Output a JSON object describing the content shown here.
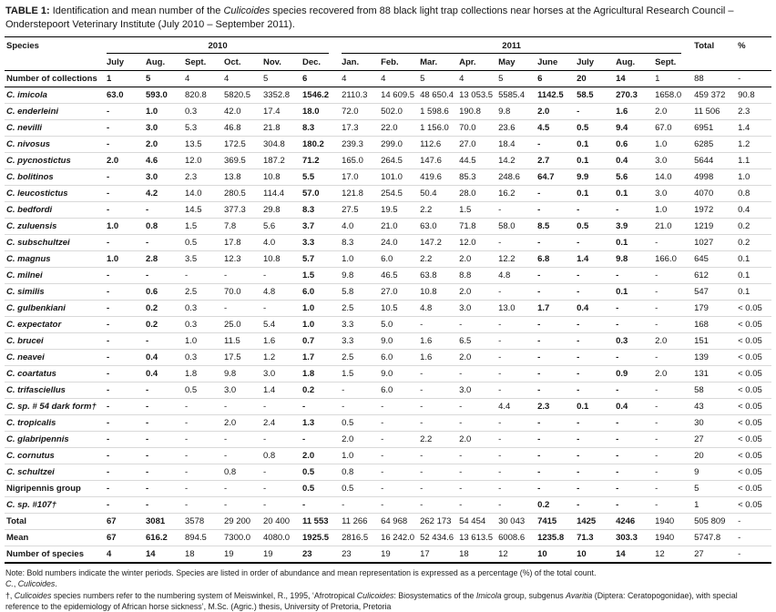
{
  "caption": {
    "label": "TABLE 1:",
    "pre": " Identification and mean number of the ",
    "genus": "Culicoides",
    "post": " species recovered from 88 black light trap collections near horses at the Agricultural Research Council – Onderstepoort Veterinary Institute (July 2010 – September 2011)."
  },
  "table": {
    "header": {
      "species": "Species",
      "years": [
        {
          "label": "2010",
          "span": 6
        },
        {
          "label": "2011",
          "span": 9
        }
      ],
      "months": [
        "July",
        "Aug.",
        "Sept.",
        "Oct.",
        "Nov.",
        "Dec.",
        "Jan.",
        "Feb.",
        "Mar.",
        "Apr.",
        "May",
        "June",
        "July",
        "Aug.",
        "Sept."
      ],
      "total": "Total",
      "percent": "%"
    },
    "winter_columns": [
      0,
      1,
      5,
      11,
      12,
      13
    ],
    "collections_row": {
      "label": "Number of collections",
      "italic": false,
      "values": [
        "1",
        "5",
        "4",
        "4",
        "5",
        "6",
        "4",
        "4",
        "5",
        "4",
        "5",
        "6",
        "20",
        "14",
        "1"
      ],
      "total": "88",
      "percent": "-"
    },
    "species_rows": [
      {
        "label": "C. imicola",
        "italic": true,
        "values": [
          "63.0",
          "593.0",
          "820.8",
          "5820.5",
          "3352.8",
          "1546.2",
          "2110.3",
          "14 609.5",
          "48 650.4",
          "13 053.5",
          "5585.4",
          "1142.5",
          "58.5",
          "270.3",
          "1658.0"
        ],
        "total": "459 372",
        "percent": "90.8"
      },
      {
        "label": "C. enderleini",
        "italic": true,
        "values": [
          "-",
          "1.0",
          "0.3",
          "42.0",
          "17.4",
          "18.0",
          "72.0",
          "502.0",
          "1 598.6",
          "190.8",
          "9.8",
          "2.0",
          "-",
          "1.6",
          "2.0"
        ],
        "total": "11 506",
        "percent": "2.3"
      },
      {
        "label": "C. nevilli",
        "italic": true,
        "values": [
          "-",
          "3.0",
          "5.3",
          "46.8",
          "21.8",
          "8.3",
          "17.3",
          "22.0",
          "1 156.0",
          "70.0",
          "23.6",
          "4.5",
          "0.5",
          "9.4",
          "67.0"
        ],
        "total": "6951",
        "percent": "1.4"
      },
      {
        "label": "C. nivosus",
        "italic": true,
        "values": [
          "-",
          "2.0",
          "13.5",
          "172.5",
          "304.8",
          "180.2",
          "239.3",
          "299.0",
          "112.6",
          "27.0",
          "18.4",
          "-",
          "0.1",
          "0.6",
          "1.0"
        ],
        "total": "6285",
        "percent": "1.2"
      },
      {
        "label": "C. pycnostictus",
        "italic": true,
        "values": [
          "2.0",
          "4.6",
          "12.0",
          "369.5",
          "187.2",
          "71.2",
          "165.0",
          "264.5",
          "147.6",
          "44.5",
          "14.2",
          "2.7",
          "0.1",
          "0.4",
          "3.0"
        ],
        "total": "5644",
        "percent": "1.1"
      },
      {
        "label": "C. bolitinos",
        "italic": true,
        "values": [
          "-",
          "3.0",
          "2.3",
          "13.8",
          "10.8",
          "5.5",
          "17.0",
          "101.0",
          "419.6",
          "85.3",
          "248.6",
          "64.7",
          "9.9",
          "5.6",
          "14.0"
        ],
        "total": "4998",
        "percent": "1.0"
      },
      {
        "label": "C. leucostictus",
        "italic": true,
        "values": [
          "-",
          "4.2",
          "14.0",
          "280.5",
          "114.4",
          "57.0",
          "121.8",
          "254.5",
          "50.4",
          "28.0",
          "16.2",
          "-",
          "0.1",
          "0.1",
          "3.0"
        ],
        "total": "4070",
        "percent": "0.8"
      },
      {
        "label": "C. bedfordi",
        "italic": true,
        "values": [
          "-",
          "-",
          "14.5",
          "377.3",
          "29.8",
          "8.3",
          "27.5",
          "19.5",
          "2.2",
          "1.5",
          "-",
          "-",
          "-",
          "-",
          "1.0"
        ],
        "total": "1972",
        "percent": "0.4"
      },
      {
        "label": "C. zuluensis",
        "italic": true,
        "values": [
          "1.0",
          "0.8",
          "1.5",
          "7.8",
          "5.6",
          "3.7",
          "4.0",
          "21.0",
          "63.0",
          "71.8",
          "58.0",
          "8.5",
          "0.5",
          "3.9",
          "21.0"
        ],
        "total": "1219",
        "percent": "0.2"
      },
      {
        "label": "C. subschultzei",
        "italic": true,
        "values": [
          "-",
          "-",
          "0.5",
          "17.8",
          "4.0",
          "3.3",
          "8.3",
          "24.0",
          "147.2",
          "12.0",
          "-",
          "-",
          "-",
          "0.1",
          "-"
        ],
        "total": "1027",
        "percent": "0.2"
      },
      {
        "label": "C. magnus",
        "italic": true,
        "values": [
          "1.0",
          "2.8",
          "3.5",
          "12.3",
          "10.8",
          "5.7",
          "1.0",
          "6.0",
          "2.2",
          "2.0",
          "12.2",
          "6.8",
          "1.4",
          "9.8",
          "166.0"
        ],
        "total": "645",
        "percent": "0.1"
      },
      {
        "label": "C. milnei",
        "italic": true,
        "values": [
          "-",
          "-",
          "-",
          "-",
          "-",
          "1.5",
          "9.8",
          "46.5",
          "63.8",
          "8.8",
          "4.8",
          "-",
          "-",
          "-",
          "-"
        ],
        "total": "612",
        "percent": "0.1"
      },
      {
        "label": "C. similis",
        "italic": true,
        "values": [
          "-",
          "0.6",
          "2.5",
          "70.0",
          "4.8",
          "6.0",
          "5.8",
          "27.0",
          "10.8",
          "2.0",
          "-",
          "-",
          "-",
          "0.1",
          "-"
        ],
        "total": "547",
        "percent": "0.1"
      },
      {
        "label": "C. gulbenkiani",
        "italic": true,
        "values": [
          "-",
          "0.2",
          "0.3",
          "-",
          "-",
          "1.0",
          "2.5",
          "10.5",
          "4.8",
          "3.0",
          "13.0",
          "1.7",
          "0.4",
          "-",
          "-"
        ],
        "total": "179",
        "percent": "< 0.05"
      },
      {
        "label": "C. expectator",
        "italic": true,
        "values": [
          "-",
          "0.2",
          "0.3",
          "25.0",
          "5.4",
          "1.0",
          "3.3",
          "5.0",
          "-",
          "-",
          "-",
          "-",
          "-",
          "-",
          "-"
        ],
        "total": "168",
        "percent": "< 0.05"
      },
      {
        "label": "C. brucei",
        "italic": true,
        "values": [
          "-",
          "-",
          "1.0",
          "11.5",
          "1.6",
          "0.7",
          "3.3",
          "9.0",
          "1.6",
          "6.5",
          "-",
          "-",
          "-",
          "0.3",
          "2.0"
        ],
        "total": "151",
        "percent": "< 0.05"
      },
      {
        "label": "C. neavei",
        "italic": true,
        "values": [
          "-",
          "0.4",
          "0.3",
          "17.5",
          "1.2",
          "1.7",
          "2.5",
          "6.0",
          "1.6",
          "2.0",
          "-",
          "-",
          "-",
          "-",
          "-"
        ],
        "total": "139",
        "percent": "< 0.05"
      },
      {
        "label": "C. coartatus",
        "italic": true,
        "values": [
          "-",
          "0.4",
          "1.8",
          "9.8",
          "3.0",
          "1.8",
          "1.5",
          "9.0",
          "-",
          "-",
          "-",
          "-",
          "-",
          "0.9",
          "2.0"
        ],
        "total": "131",
        "percent": "< 0.05"
      },
      {
        "label": "C. trifasciellus",
        "italic": true,
        "values": [
          "-",
          "-",
          "0.5",
          "3.0",
          "1.4",
          "0.2",
          "-",
          "6.0",
          "-",
          "3.0",
          "-",
          "-",
          "-",
          "-",
          "-"
        ],
        "total": "58",
        "percent": "< 0.05"
      },
      {
        "label": "C. sp. # 54 dark form†",
        "italic": true,
        "values": [
          "-",
          "-",
          "-",
          "-",
          "-",
          "-",
          "-",
          "-",
          "-",
          "-",
          "4.4",
          "2.3",
          "0.1",
          "0.4",
          "-"
        ],
        "total": "43",
        "percent": "< 0.05"
      },
      {
        "label": "C. tropicalis",
        "italic": true,
        "values": [
          "-",
          "-",
          "-",
          "2.0",
          "2.4",
          "1.3",
          "0.5",
          "-",
          "-",
          "-",
          "-",
          "-",
          "-",
          "-",
          "-"
        ],
        "total": "30",
        "percent": "< 0.05"
      },
      {
        "label": "C. glabripennis",
        "italic": true,
        "values": [
          "-",
          "-",
          "-",
          "-",
          "-",
          "-",
          "2.0",
          "-",
          "2.2",
          "2.0",
          "-",
          "-",
          "-",
          "-",
          "-"
        ],
        "total": "27",
        "percent": "< 0.05"
      },
      {
        "label": "C. cornutus",
        "italic": true,
        "values": [
          "-",
          "-",
          "-",
          "-",
          "0.8",
          "2.0",
          "1.0",
          "-",
          "-",
          "-",
          "-",
          "-",
          "-",
          "-",
          "-"
        ],
        "total": "20",
        "percent": "< 0.05"
      },
      {
        "label": "C. schultzei",
        "italic": true,
        "values": [
          "-",
          "-",
          "-",
          "0.8",
          "-",
          "0.5",
          "0.8",
          "-",
          "-",
          "-",
          "-",
          "-",
          "-",
          "-",
          "-"
        ],
        "total": "9",
        "percent": "< 0.05"
      },
      {
        "label": "Nigripennis group",
        "italic": false,
        "values": [
          "-",
          "-",
          "-",
          "-",
          "-",
          "0.5",
          "0.5",
          "-",
          "-",
          "-",
          "-",
          "-",
          "-",
          "-",
          "-"
        ],
        "total": "5",
        "percent": "< 0.05"
      },
      {
        "label": "C. sp. #107†",
        "italic": true,
        "values": [
          "-",
          "-",
          "-",
          "-",
          "-",
          "-",
          "-",
          "-",
          "-",
          "-",
          "-",
          "0.2",
          "-",
          "-",
          "-"
        ],
        "total": "1",
        "percent": "< 0.05"
      }
    ],
    "summary_rows": [
      {
        "label": "Total",
        "italic": false,
        "values": [
          "67",
          "3081",
          "3578",
          "29 200",
          "20 400",
          "11 553",
          "11 266",
          "64 968",
          "262 173",
          "54 454",
          "30 043",
          "7415",
          "1425",
          "4246",
          "1940"
        ],
        "total": "505 809",
        "percent": "-"
      },
      {
        "label": "Mean",
        "italic": false,
        "values": [
          "67",
          "616.2",
          "894.5",
          "7300.0",
          "4080.0",
          "1925.5",
          "2816.5",
          "16 242.0",
          "52 434.6",
          "13 613.5",
          "6008.6",
          "1235.8",
          "71.3",
          "303.3",
          "1940"
        ],
        "total": "5747.8",
        "percent": "-"
      },
      {
        "label": "Number of species",
        "italic": false,
        "values": [
          "4",
          "14",
          "18",
          "19",
          "19",
          "23",
          "23",
          "19",
          "17",
          "18",
          "12",
          "10",
          "10",
          "14",
          "12"
        ],
        "total": "27",
        "percent": "-"
      }
    ]
  },
  "notes": [
    {
      "segments": [
        {
          "text": "Note: Bold numbers indicate the winter periods. Species are listed in order of abundance and mean representation is expressed as a percentage (%) of the total count.",
          "italic": false
        }
      ]
    },
    {
      "segments": [
        {
          "text": "C.",
          "italic": true
        },
        {
          "text": ", ",
          "italic": false
        },
        {
          "text": "Culicoides",
          "italic": true
        },
        {
          "text": ".",
          "italic": false
        }
      ]
    },
    {
      "segments": [
        {
          "text": "†, ",
          "italic": false
        },
        {
          "text": "Culicoides",
          "italic": true
        },
        {
          "text": " species numbers refer to the numbering system of Meiswinkel, R., 1995, ‘Afrotropical ",
          "italic": false
        },
        {
          "text": "Culicoides",
          "italic": true
        },
        {
          "text": ": Biosystematics of the ",
          "italic": false
        },
        {
          "text": "Imicola",
          "italic": true
        },
        {
          "text": " group, subgenus ",
          "italic": false
        },
        {
          "text": "Avaritia",
          "italic": true
        },
        {
          "text": " (Diptera: Ceratopogonidae), with special reference to the epidemiology of African horse sickness’, M.Sc. (Agric.) thesis, University of Pretoria, Pretoria",
          "italic": false
        }
      ]
    }
  ]
}
